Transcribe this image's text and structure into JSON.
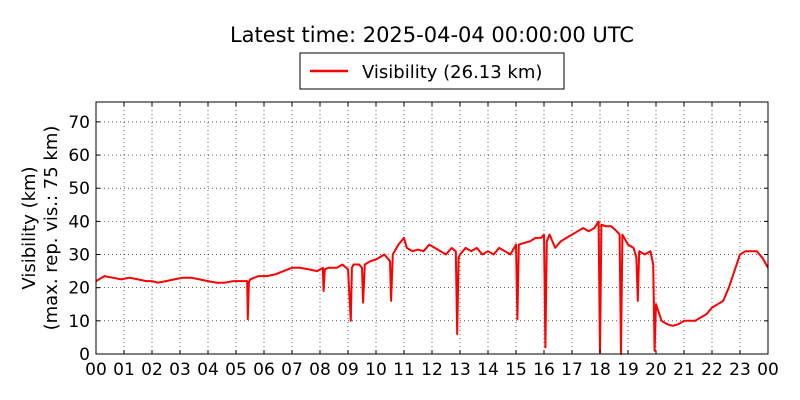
{
  "chart_data": {
    "type": "line",
    "title": "Latest time: 2025-04-04 00:00:00 UTC",
    "ylabel_lines": [
      "Visibility (km)",
      "(max. rep. vis.: 75 km)"
    ],
    "xlabel": "",
    "xlim": [
      0,
      24
    ],
    "ylim": [
      0,
      76
    ],
    "grid": true,
    "legend_position": "top-center",
    "x_ticks": [
      0,
      1,
      2,
      3,
      4,
      5,
      6,
      7,
      8,
      9,
      10,
      11,
      12,
      13,
      14,
      15,
      16,
      17,
      18,
      19,
      20,
      21,
      22,
      23,
      24
    ],
    "x_tick_labels": [
      "00",
      "01",
      "02",
      "03",
      "04",
      "05",
      "06",
      "07",
      "08",
      "09",
      "10",
      "11",
      "12",
      "13",
      "14",
      "15",
      "16",
      "17",
      "18",
      "19",
      "20",
      "21",
      "22",
      "23",
      "00"
    ],
    "y_ticks": [
      0,
      10,
      20,
      30,
      40,
      50,
      60,
      70
    ],
    "y_tick_labels": [
      "0",
      "10",
      "20",
      "30",
      "40",
      "50",
      "60",
      "70"
    ],
    "series": [
      {
        "name": "Visibility (26.13 km)",
        "color": "#ff0000",
        "x": [
          0.0,
          0.3,
          0.6,
          0.9,
          1.2,
          1.5,
          1.8,
          2.0,
          2.2,
          2.5,
          2.8,
          3.1,
          3.4,
          3.7,
          4.0,
          4.3,
          4.6,
          4.9,
          5.2,
          5.4,
          5.42,
          5.46,
          5.5,
          5.8,
          6.1,
          6.4,
          6.7,
          7.0,
          7.3,
          7.6,
          7.9,
          8.1,
          8.13,
          8.17,
          8.3,
          8.6,
          8.8,
          9.0,
          9.1,
          9.14,
          9.2,
          9.4,
          9.5,
          9.54,
          9.6,
          9.8,
          10.0,
          10.3,
          10.5,
          10.54,
          10.6,
          10.8,
          11.0,
          11.1,
          11.3,
          11.5,
          11.7,
          11.9,
          12.1,
          12.3,
          12.5,
          12.7,
          12.85,
          12.9,
          12.95,
          13.0,
          13.2,
          13.4,
          13.6,
          13.8,
          14.0,
          14.2,
          14.4,
          14.6,
          14.8,
          15.0,
          15.05,
          15.1,
          15.3,
          15.5,
          15.7,
          15.9,
          16.0,
          16.05,
          16.1,
          16.2,
          16.4,
          16.6,
          16.8,
          17.0,
          17.2,
          17.4,
          17.6,
          17.8,
          17.95,
          18.0,
          18.05,
          18.2,
          18.4,
          18.6,
          18.7,
          18.75,
          18.8,
          19.0,
          19.2,
          19.3,
          19.35,
          19.4,
          19.6,
          19.8,
          19.9,
          19.95,
          20.0,
          20.2,
          20.4,
          20.6,
          20.8,
          21.0,
          21.2,
          21.4,
          21.6,
          21.8,
          22.0,
          22.2,
          22.4,
          22.6,
          22.8,
          23.0,
          23.2,
          23.4,
          23.6,
          23.8,
          24.0
        ],
        "y": [
          22,
          23.5,
          23,
          22.5,
          23,
          22.5,
          22,
          22,
          21.5,
          22,
          22.5,
          23,
          23,
          22.5,
          22,
          21.5,
          21.5,
          22,
          22,
          22,
          10.5,
          21.5,
          22.5,
          23.5,
          23.5,
          24,
          25,
          26,
          26,
          25.5,
          25,
          26,
          19,
          25.5,
          26,
          26,
          27,
          25.5,
          10,
          26,
          27,
          27,
          26,
          15.5,
          27,
          28,
          28.5,
          30,
          28,
          16,
          30,
          33,
          35,
          32,
          31,
          31.5,
          31,
          33,
          32,
          31,
          30,
          32,
          31,
          6,
          29,
          30,
          32,
          31,
          32,
          30,
          31,
          30,
          32,
          31,
          30,
          33,
          10.5,
          33,
          33.5,
          34,
          35,
          35,
          36,
          2,
          34,
          36,
          32,
          34,
          35,
          36,
          37,
          38,
          37,
          38,
          40,
          0.5,
          39,
          38.5,
          38.5,
          37,
          36,
          0,
          36,
          33,
          32,
          29,
          16,
          31,
          30,
          31,
          27,
          1,
          15,
          10,
          9,
          8.5,
          9,
          10,
          10,
          10,
          11,
          12,
          14,
          15,
          16,
          20,
          25,
          30,
          31,
          31,
          31,
          29,
          26
        ]
      }
    ]
  }
}
